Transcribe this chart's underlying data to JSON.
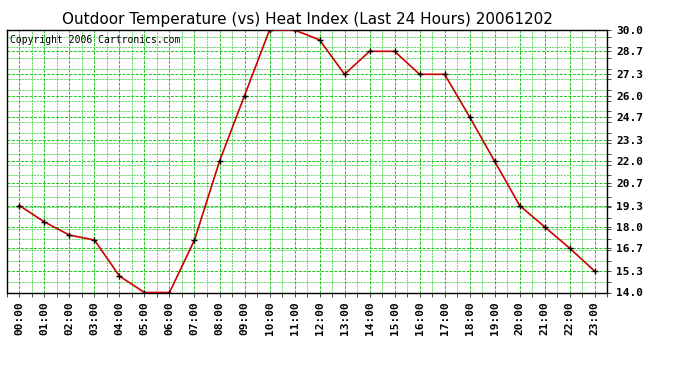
{
  "title": "Outdoor Temperature (vs) Heat Index (Last 24 Hours) 20061202",
  "copyright": "Copyright 2006 Cartronics.com",
  "x_labels": [
    "00:00",
    "01:00",
    "02:00",
    "03:00",
    "04:00",
    "05:00",
    "06:00",
    "07:00",
    "08:00",
    "09:00",
    "10:00",
    "11:00",
    "12:00",
    "13:00",
    "14:00",
    "15:00",
    "16:00",
    "17:00",
    "18:00",
    "19:00",
    "20:00",
    "21:00",
    "22:00",
    "23:00"
  ],
  "y_values": [
    19.3,
    18.3,
    17.5,
    17.2,
    15.0,
    14.0,
    14.0,
    17.2,
    22.0,
    26.0,
    30.0,
    30.0,
    29.4,
    27.3,
    28.7,
    28.7,
    27.3,
    27.3,
    24.7,
    22.0,
    19.3,
    18.0,
    16.7,
    15.3
  ],
  "y_ticks": [
    14.0,
    15.3,
    16.7,
    18.0,
    19.3,
    20.7,
    22.0,
    23.3,
    24.7,
    26.0,
    27.3,
    28.7,
    30.0
  ],
  "y_min": 14.0,
  "y_max": 30.0,
  "line_color": "#cc0000",
  "marker_color": "#000000",
  "bg_color": "#ffffff",
  "grid_color_major": "#00bb00",
  "grid_color_minor": "#00bb00",
  "title_color": "#000000",
  "title_fontsize": 11,
  "copyright_fontsize": 7,
  "tick_label_color": "#000000",
  "tick_label_fontsize": 8
}
